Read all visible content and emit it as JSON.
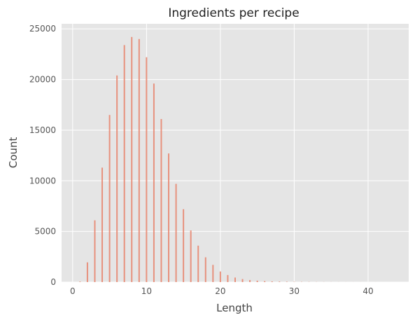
{
  "chart_data": {
    "type": "bar",
    "title": "Ingredients per recipe",
    "xlabel": "Length",
    "ylabel": "Count",
    "xlim": [
      -1.5,
      45.5
    ],
    "ylim": [
      0,
      25500
    ],
    "grid": true,
    "colors": {
      "background": "#e5e5e5",
      "grid": "#ffffff",
      "bar": "#e8826b"
    },
    "x": [
      1,
      2,
      3,
      4,
      5,
      6,
      7,
      8,
      9,
      10,
      11,
      12,
      13,
      14,
      15,
      16,
      17,
      18,
      19,
      20,
      21,
      22,
      23,
      24,
      25,
      26,
      27,
      28,
      29,
      30,
      31,
      32,
      33,
      34,
      35,
      36,
      37,
      38,
      39,
      40,
      41,
      42,
      43
    ],
    "values": [
      50,
      1950,
      6100,
      11300,
      16500,
      20400,
      23400,
      24200,
      24000,
      22200,
      19600,
      16100,
      12700,
      9700,
      7200,
      5100,
      3600,
      2450,
      1700,
      1050,
      700,
      450,
      300,
      200,
      140,
      100,
      70,
      50,
      35,
      25,
      20,
      15,
      10,
      8,
      6,
      5,
      4,
      3,
      3,
      2,
      2,
      1,
      1
    ],
    "xticks": [
      0,
      10,
      20,
      30,
      40
    ],
    "yticks": [
      0,
      5000,
      10000,
      15000,
      20000,
      25000
    ]
  }
}
